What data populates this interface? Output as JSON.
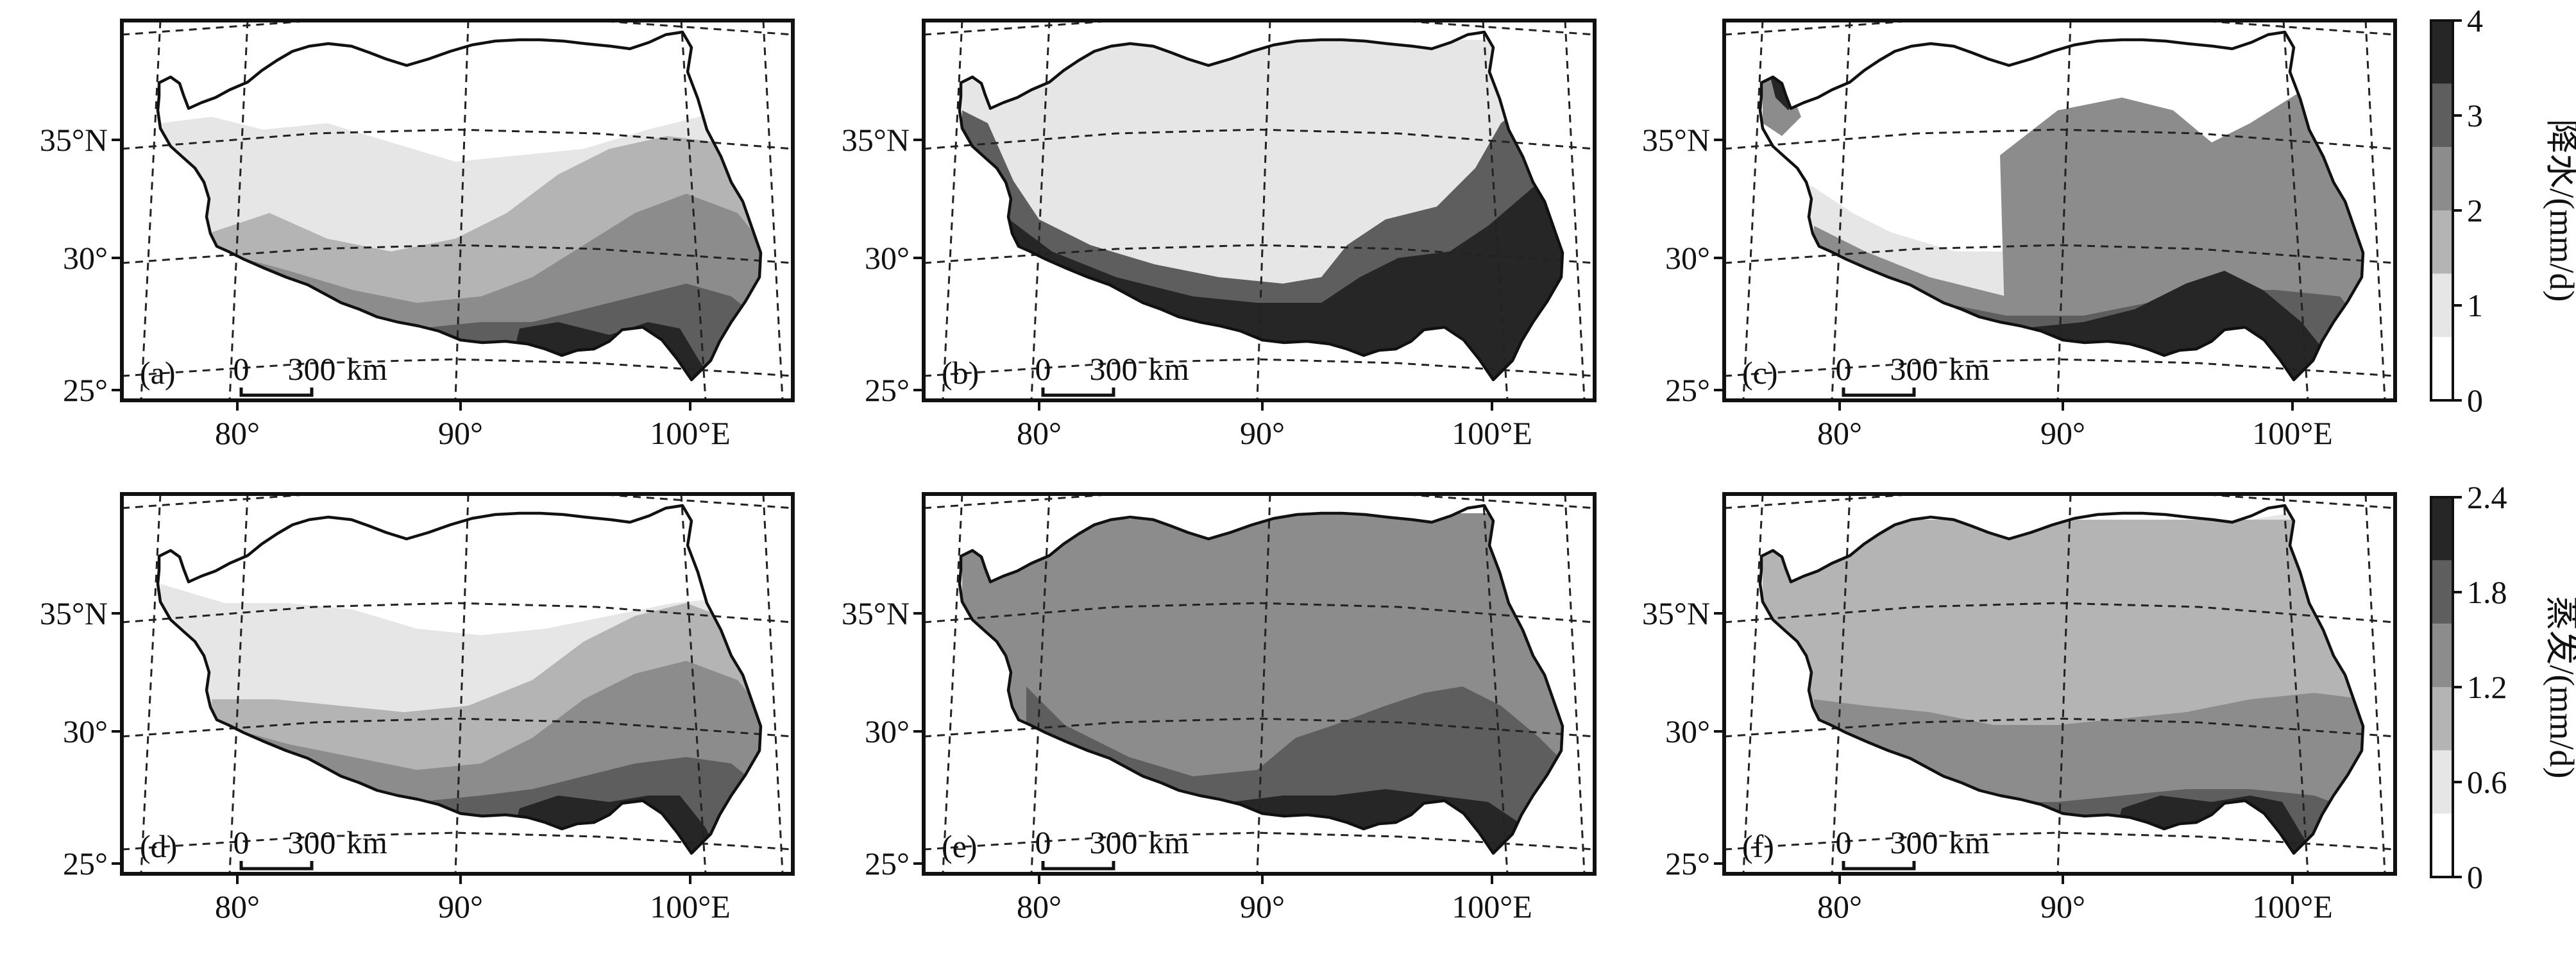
{
  "panels": [
    {
      "id": "a",
      "label": "(a)",
      "row": 0,
      "col": 0,
      "pattern": "precip_a"
    },
    {
      "id": "b",
      "label": "(b)",
      "row": 0,
      "col": 1,
      "pattern": "precip_b"
    },
    {
      "id": "c",
      "label": "(c)",
      "row": 0,
      "col": 2,
      "pattern": "precip_c"
    },
    {
      "id": "d",
      "label": "(d)",
      "row": 1,
      "col": 0,
      "pattern": "evap_d"
    },
    {
      "id": "e",
      "label": "(e)",
      "row": 1,
      "col": 1,
      "pattern": "evap_e"
    },
    {
      "id": "f",
      "label": "(f)",
      "row": 1,
      "col": 2,
      "pattern": "evap_f"
    }
  ],
  "axes": {
    "lat_labels": [
      "35°N",
      "30°",
      "25°"
    ],
    "lon_labels": [
      "80°",
      "90°",
      "100°E"
    ]
  },
  "scale_bar": {
    "zero": "0",
    "value": "300",
    "unit": "km"
  },
  "colorbars": [
    {
      "id": "precip",
      "title": "降水/(mm/d)",
      "ticks": [
        "4",
        "3",
        "2",
        "1",
        "0"
      ]
    },
    {
      "id": "evap",
      "title": "蒸发/(mm/d)",
      "ticks": [
        "2.4",
        "1.8",
        "1.2",
        "0.6",
        "0"
      ]
    }
  ],
  "colors": {
    "class0": "#ffffff",
    "class1": "#e6e6e6",
    "class2": "#b4b4b4",
    "class3": "#8c8c8c",
    "class4": "#5e5e5e",
    "class5": "#262626"
  }
}
